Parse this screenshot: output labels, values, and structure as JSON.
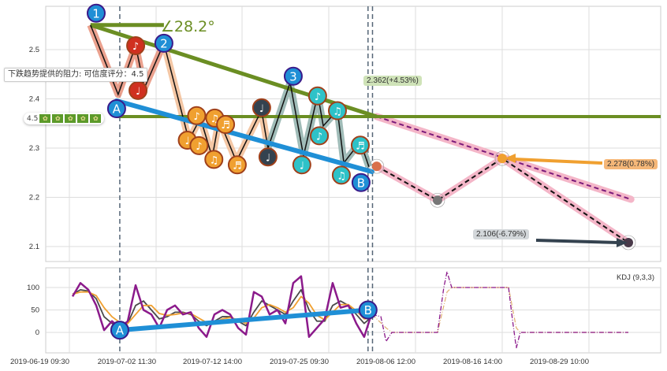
{
  "chart_data": [
    {
      "type": "line",
      "panel": "price",
      "yticks": [
        2.1,
        2.2,
        2.3,
        2.4,
        2.5
      ],
      "ylim": [
        2.05,
        2.59
      ],
      "xticks": [
        "2019-06-19 09:30",
        "2019-07-02 11:30",
        "2019-07-12 14:00",
        "2019-07-25 09:30",
        "2019-08-06 12:00",
        "2019-08-16 14:00",
        "2019-08-29 10:00"
      ],
      "grid": true,
      "colors": {
        "trend": "#6b8e23",
        "support": "#1f8fd6",
        "projection_band": "#f4b6c8",
        "projection_dash": "#7a1a7a"
      },
      "zigzag": {
        "points": [
          [
            "2019-06-22 14:00",
            2.55
          ],
          [
            "2019-06-26 18:00",
            2.409
          ],
          [
            "2019-06-29 09:30",
            2.508
          ],
          [
            "2019-06-30 17:00",
            2.422
          ],
          [
            "2019-07-03 09:30",
            2.513
          ],
          [
            "2019-07-06 08:00",
            2.316
          ],
          [
            "2019-07-07 16:30",
            2.361
          ],
          [
            "2019-07-09 02:00",
            2.281
          ],
          [
            "2019-07-09 21:00",
            2.358
          ],
          [
            "2019-07-11 22:00",
            2.273
          ],
          [
            "2019-07-15 11:00",
            2.377
          ],
          [
            "2019-07-16 10:00",
            2.3
          ],
          [
            "2019-07-19 16:30",
            2.433
          ],
          [
            "2019-07-21 16:00",
            2.284
          ],
          [
            "2019-07-23 18:30",
            2.409
          ],
          [
            "2019-07-24 14:00",
            2.345
          ],
          [
            "2019-07-26 14:30",
            2.377
          ],
          [
            "2019-07-27 12:00",
            2.27
          ],
          [
            "2019-07-29 19:00",
            2.313
          ],
          [
            "2019-07-31 00:00",
            2.262
          ]
        ],
        "bands": [
          {
            "from": 0,
            "to": 4,
            "color": "#e8907a"
          },
          {
            "from": 4,
            "to": 11,
            "color": "#f2bd95"
          },
          {
            "from": 11,
            "to": 19,
            "color": "#8fb0ac"
          }
        ]
      },
      "resistance_line": {
        "from": [
          "2019-06-22 14:00",
          2.55
        ],
        "to": [
          "2019-08-01 02:00",
          2.364
        ]
      },
      "horizontal_line": {
        "price": 2.364,
        "from": "2019-06-26 12:30"
      },
      "angle": {
        "from": [
          "2019-06-22 14:00",
          2.55
        ],
        "to": [
          "2019-07-03 09:30",
          2.55
        ],
        "label": "∠28.2°"
      },
      "support_line": {
        "from": [
          "2019-06-26 12:30",
          2.396
        ],
        "to": [
          "2019-07-31 10:30",
          2.252
        ]
      },
      "dashed_verticals": [
        "2019-06-27 00:00",
        "2019-07-30 21:00",
        "2019-07-31 12:00"
      ],
      "projection_trend": {
        "from": [
          "2019-08-01 02:00",
          2.364
        ],
        "to": [
          "2019-09-04 15:00",
          2.196
        ]
      },
      "projection_path": [
        [
          "2019-08-01 02:00",
          2.263
        ],
        [
          "2019-08-09 01:30",
          2.194
        ],
        [
          "2019-08-16 14:00",
          2.279
        ],
        [
          "2019-09-04 06:00",
          2.108
        ]
      ],
      "projection_dot_colors": [
        "#d9704a",
        "#777777",
        "#f0a030",
        "#4a3a4a"
      ],
      "markers": [
        {
          "label": "1",
          "kind": "number",
          "at": [
            "2019-06-23 10:30",
            2.574
          ]
        },
        {
          "label": "2",
          "kind": "number",
          "at": [
            "2019-07-03 09:30",
            2.513
          ]
        },
        {
          "label": "3",
          "kind": "number",
          "at": [
            "2019-07-20 03:30",
            2.446
          ]
        },
        {
          "label": "A",
          "kind": "number",
          "at": [
            "2019-06-26 12:30",
            2.38
          ]
        },
        {
          "label": "B",
          "kind": "number",
          "at": [
            "2019-07-29 21:30",
            2.23
          ]
        },
        {
          "label": "♩",
          "kind": "red",
          "at": [
            "2019-06-29 18:00",
            2.417
          ]
        },
        {
          "label": "♪",
          "kind": "red",
          "at": [
            "2019-06-29 09:30",
            2.508
          ]
        },
        {
          "label": "♩",
          "kind": "orange",
          "at": [
            "2019-07-06 03:30",
            2.316
          ]
        },
        {
          "label": "♪",
          "kind": "orange",
          "at": [
            "2019-07-07 06:00",
            2.366
          ]
        },
        {
          "label": "♫",
          "kind": "orange",
          "at": [
            "2019-07-09 09:00",
            2.361
          ]
        },
        {
          "label": "♬",
          "kind": "orange",
          "at": [
            "2019-07-10 15:30",
            2.348
          ]
        },
        {
          "label": "♪",
          "kind": "orange",
          "at": [
            "2019-07-07 12:30",
            2.305
          ]
        },
        {
          "label": "♫",
          "kind": "orange",
          "at": [
            "2019-07-09 06:30",
            2.277
          ]
        },
        {
          "label": "♬",
          "kind": "orange",
          "at": [
            "2019-07-12 00:30",
            2.266
          ]
        },
        {
          "label": "♩",
          "kind": "dark",
          "at": [
            "2019-07-15 11:30",
            2.382
          ]
        },
        {
          "label": "♩",
          "kind": "dark",
          "at": [
            "2019-07-16 10:00",
            2.282
          ]
        },
        {
          "label": "♪",
          "kind": "teal",
          "at": [
            "2019-07-23 18:00",
            2.406
          ]
        },
        {
          "label": "♫",
          "kind": "teal",
          "at": [
            "2019-07-26 14:30",
            2.376
          ]
        },
        {
          "label": "♪",
          "kind": "teal",
          "at": [
            "2019-07-24 00:00",
            2.325
          ]
        },
        {
          "label": "♩",
          "kind": "teal",
          "at": [
            "2019-07-21 10:00",
            2.266
          ]
        },
        {
          "label": "♬",
          "kind": "teal",
          "at": [
            "2019-07-29 19:00",
            2.306
          ]
        },
        {
          "label": "♫",
          "kind": "teal",
          "at": [
            "2019-07-27 03:30",
            2.245
          ]
        }
      ],
      "marker_colors": {
        "number": "#1f8fd6",
        "red": "#d03020",
        "orange": "#f0a030",
        "dark": "#34424f",
        "teal": "#2ec2c8"
      },
      "annotations": [
        {
          "text": "2.362(+4.53%)",
          "bg": "#cfe3b8"
        },
        {
          "text": "2.278(0.78%)",
          "bg": "#f5b778"
        },
        {
          "text": "2.106(-6.79%)",
          "bg": "#d3d7da"
        }
      ]
    },
    {
      "type": "line",
      "panel": "indicator",
      "title": "KDJ (9,3,3)",
      "yticks": [
        0,
        50,
        100
      ],
      "ylim": [
        -45,
        145
      ],
      "sample_range": [
        "2019-06-19 21:00",
        "2019-07-31 10:30"
      ],
      "series": [
        {
          "key": "K",
          "color": "#4a4a4a",
          "values": [
            85,
            95,
            92,
            75,
            35,
            20,
            15,
            20,
            60,
            70,
            50,
            30,
            35,
            45,
            45,
            40,
            25,
            15,
            25,
            35,
            35,
            25,
            15,
            45,
            70,
            60,
            50,
            40,
            70,
            95,
            50,
            25,
            25,
            60,
            70,
            60,
            40,
            20,
            35
          ]
        },
        {
          "key": "D",
          "color": "#f0a030",
          "values": [
            85,
            90,
            90,
            82,
            55,
            35,
            22,
            20,
            40,
            60,
            60,
            42,
            38,
            40,
            43,
            42,
            32,
            22,
            22,
            30,
            33,
            28,
            20,
            32,
            55,
            62,
            55,
            45,
            55,
            80,
            65,
            38,
            28,
            45,
            62,
            62,
            48,
            30,
            32
          ]
        },
        {
          "key": "J",
          "color": "#8b1a8b",
          "values": [
            80,
            110,
            95,
            60,
            5,
            25,
            10,
            25,
            105,
            50,
            40,
            10,
            50,
            60,
            40,
            45,
            10,
            -10,
            40,
            50,
            40,
            10,
            -5,
            90,
            80,
            40,
            50,
            20,
            110,
            125,
            -10,
            10,
            30,
            110,
            55,
            60,
            20,
            -10,
            45
          ]
        }
      ],
      "projection": {
        "J": [
          [
            "2019-07-31 10:30",
            40
          ],
          [
            "2019-08-01 16:00",
            35
          ],
          [
            "2019-08-02 09:30",
            -20
          ],
          [
            "2019-08-03 05:00",
            0
          ],
          [
            "2019-08-09 01:30",
            0
          ],
          [
            "2019-08-09 19:00",
            100
          ],
          [
            "2019-08-10 04:00",
            135
          ],
          [
            "2019-08-10 17:00",
            100
          ],
          [
            "2019-08-17 12:30",
            100
          ],
          [
            "2019-08-18 02:00",
            30
          ],
          [
            "2019-08-18 16:00",
            -35
          ],
          [
            "2019-08-19 06:00",
            0
          ],
          [
            "2019-09-04 06:00",
            0
          ]
        ],
        "K": [
          [
            "2019-07-31 10:30",
            40
          ],
          [
            "2019-08-02 09:30",
            10
          ],
          [
            "2019-08-03 05:00",
            0
          ],
          [
            "2019-08-09 01:30",
            0
          ],
          [
            "2019-08-10 04:00",
            90
          ],
          [
            "2019-08-10 17:00",
            100
          ],
          [
            "2019-08-17 12:30",
            100
          ],
          [
            "2019-08-18 16:00",
            10
          ],
          [
            "2019-08-19 06:00",
            0
          ],
          [
            "2019-09-04 06:00",
            0
          ]
        ]
      },
      "trendline": {
        "from": [
          "2019-06-27 00:00",
          5
        ],
        "to": [
          "2019-07-30 21:00",
          50
        ],
        "labels": [
          "A",
          "B"
        ]
      }
    }
  ],
  "tooltip": {
    "text": "下跌趋势提供的阻力: 可信度评分：4.5"
  },
  "rating": {
    "score": "4.5",
    "icons": 5
  }
}
